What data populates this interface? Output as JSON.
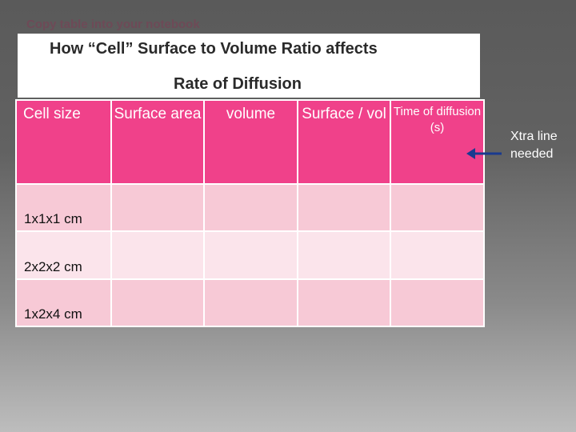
{
  "instruction": "Copy table into your notebook",
  "title": {
    "line1": "How “Cell”  Surface to Volume Ratio affects",
    "line2": "Rate of Diffusion"
  },
  "table": {
    "headers": [
      "Cell size",
      "Surface area",
      "volume",
      "Surface / vol",
      "Time of diffusion (s)"
    ],
    "rows": [
      {
        "label": "1x1x1 cm"
      },
      {
        "label": "2x2x2 cm"
      },
      {
        "label": "1x2x4 cm"
      }
    ]
  },
  "note": {
    "line1": "Xtra line",
    "line2": "needed"
  },
  "colors": {
    "header": "#f0418a",
    "row_dark": "#f7c9d6",
    "row_light": "#fbe4eb",
    "arrow": "#1a3a8f"
  }
}
